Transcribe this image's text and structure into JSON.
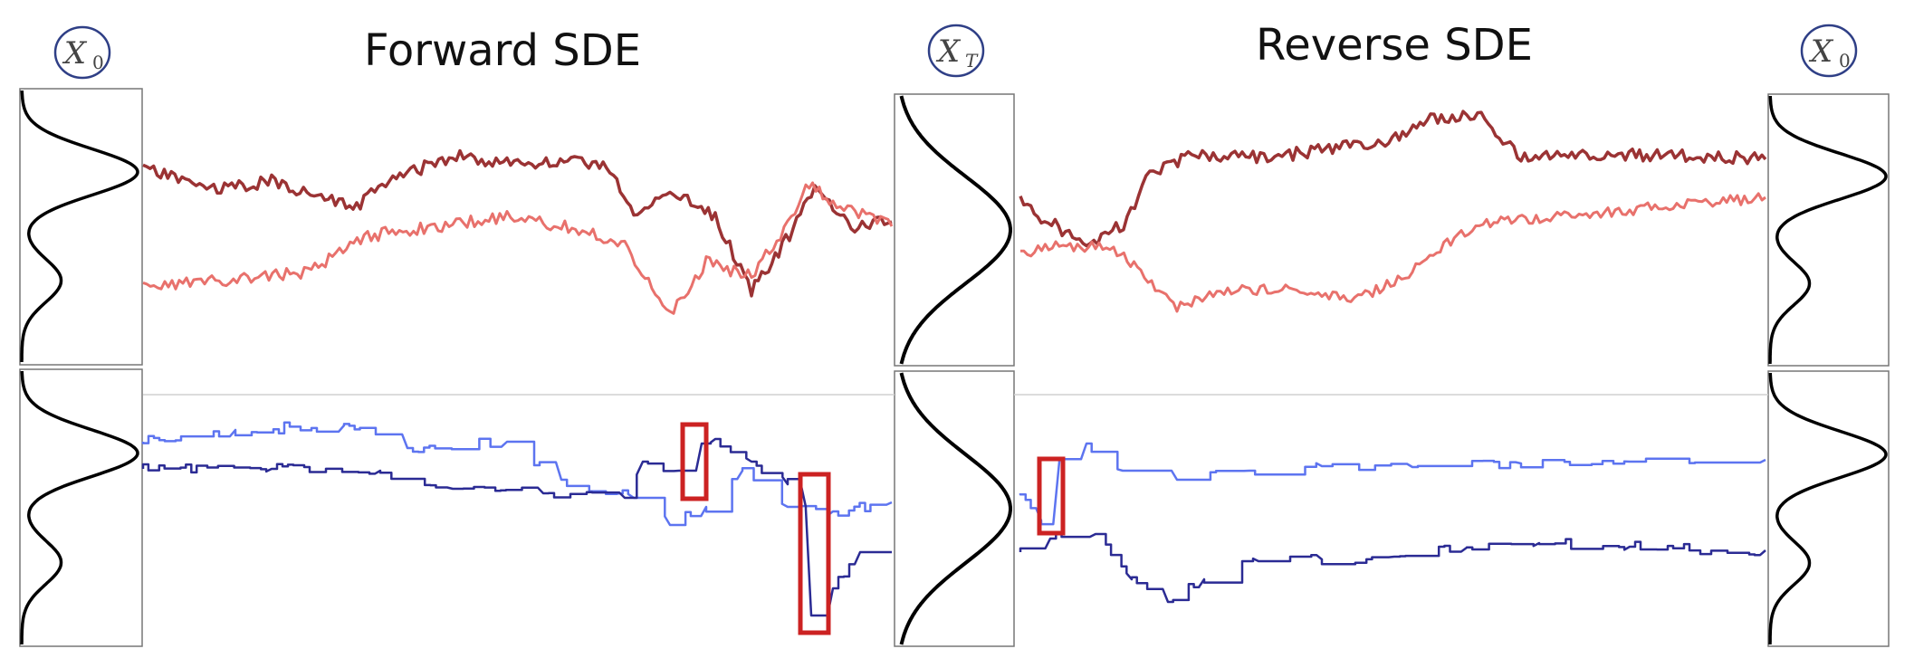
{
  "titles": {
    "forward": "Forward SDE",
    "reverse": "Reverse SDE"
  },
  "state_labels": {
    "x0_left": "X0",
    "xT_middle": "XT",
    "x0_right": "X0"
  },
  "colors": {
    "red_dark": "#9b3334",
    "red_light": "#e8716c",
    "blue_dark": "#2b2b94",
    "blue_light": "#5d74f0",
    "highlight_box": "#cc2222",
    "badge_border": "#2f3f86",
    "curve": "#000000"
  }
}
